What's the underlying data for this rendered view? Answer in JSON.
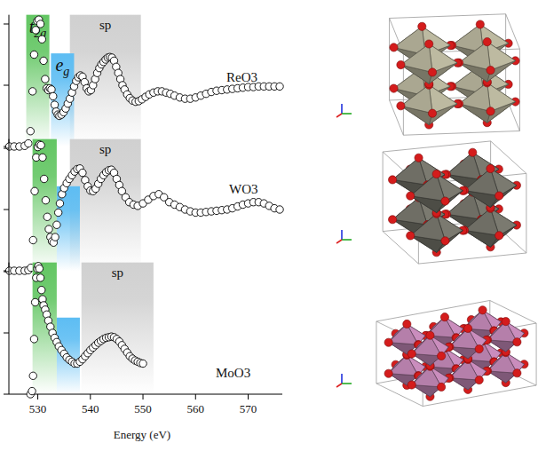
{
  "chart_data": [
    {
      "type": "scatter",
      "xlim": [
        524.5,
        576.5
      ],
      "ylim": [
        0,
        2.15
      ],
      "yticks": [
        0,
        1,
        2
      ],
      "tick_labels": false,
      "regions": [
        {
          "label": "t2g",
          "x": [
            527.8,
            532.2
          ],
          "y": [
            0,
            2.15
          ],
          "color": "#63c663"
        },
        {
          "label": "eg",
          "x": [
            532.5,
            536.9
          ],
          "y": [
            0,
            1.52
          ],
          "color": "#5dbdf3"
        },
        {
          "label": "sp",
          "x": [
            536.1,
            549.6
          ],
          "y": [
            0,
            2.15
          ],
          "color": "#d0d0d0"
        }
      ],
      "series": [
        {
          "name": "ReO3",
          "color": "#000000",
          "marker": "open-circle",
          "x": [
            524.6,
            525.5,
            526.5,
            527.5,
            528.2,
            528.6,
            529.0,
            529.3,
            529.6,
            529.9,
            530.2,
            530.5,
            530.8,
            531.1,
            531.4,
            531.7,
            532.0,
            532.3,
            532.6,
            532.9,
            533.2,
            533.5,
            533.8,
            534.1,
            534.5,
            534.9,
            535.3,
            535.7,
            536.1,
            536.5,
            536.9,
            537.3,
            537.7,
            538.1,
            538.5,
            538.9,
            539.3,
            539.7,
            540.1,
            540.5,
            540.9,
            541.3,
            541.7,
            542.1,
            542.5,
            542.9,
            543.3,
            543.7,
            544.1,
            544.5,
            544.9,
            545.3,
            545.7,
            546.1,
            546.5,
            547.0,
            547.5,
            548.0,
            548.6,
            549.2,
            549.8,
            550.5,
            551.2,
            552.0,
            552.8,
            553.6,
            554.4,
            555.2,
            556.0,
            557.0,
            558.0,
            559.0,
            560.0,
            561.0,
            562.0,
            563.0,
            564.0,
            565.0,
            566.0,
            567.0,
            568.0,
            569.0,
            570.0,
            571.0,
            572.0,
            573.0,
            574.0,
            575.0,
            576.0
          ],
          "values": [
            0,
            0,
            0,
            0.01,
            0.05,
            0.25,
            0.9,
            1.5,
            1.9,
            2.05,
            2.07,
            2.0,
            1.75,
            1.4,
            1.1,
            0.95,
            0.92,
            0.95,
            0.93,
            0.82,
            0.68,
            0.57,
            0.52,
            0.5,
            0.52,
            0.56,
            0.62,
            0.7,
            0.78,
            0.88,
            0.98,
            1.07,
            1.13,
            1.16,
            1.14,
            1.05,
            0.95,
            0.9,
            0.92,
            1.0,
            1.1,
            1.2,
            1.28,
            1.34,
            1.38,
            1.42,
            1.45,
            1.46,
            1.45,
            1.4,
            1.3,
            1.2,
            1.1,
            1.0,
            0.93,
            0.85,
            0.79,
            0.75,
            0.73,
            0.74,
            0.77,
            0.81,
            0.85,
            0.88,
            0.9,
            0.9,
            0.88,
            0.86,
            0.83,
            0.8,
            0.78,
            0.78,
            0.8,
            0.83,
            0.86,
            0.89,
            0.91,
            0.92,
            0.93,
            0.94,
            0.95,
            0.96,
            0.97,
            0.97,
            0.98,
            0.98,
            0.98,
            0.98,
            0.98
          ]
        }
      ]
    },
    {
      "type": "scatter",
      "xlim": [
        524.5,
        576.5
      ],
      "ylim": [
        0,
        2.15
      ],
      "yticks": [
        0,
        1,
        2
      ],
      "tick_labels": false,
      "regions": [
        {
          "x": [
            529.0,
            533.6
          ],
          "y": [
            0,
            2.15
          ],
          "color": "#63c663"
        },
        {
          "x": [
            533.6,
            538.0
          ],
          "y": [
            0,
            1.38
          ],
          "color": "#5dbdf3"
        },
        {
          "label": "sp",
          "x": [
            536.1,
            549.6
          ],
          "y": [
            0,
            2.15
          ],
          "color": "#d0d0d0"
        }
      ],
      "series": [
        {
          "name": "WO3",
          "color": "#000000",
          "marker": "open-circle",
          "x": [
            524.6,
            525.5,
            526.5,
            527.5,
            528.2,
            528.7,
            529.1,
            529.4,
            529.7,
            530.0,
            530.3,
            530.6,
            530.9,
            531.2,
            531.5,
            531.8,
            532.1,
            532.4,
            532.7,
            533.0,
            533.3,
            533.6,
            533.9,
            534.2,
            534.6,
            535.0,
            535.5,
            536.0,
            536.5,
            537.0,
            537.5,
            538.0,
            538.5,
            539.0,
            539.5,
            540.0,
            540.5,
            541.0,
            541.5,
            542.0,
            542.5,
            543.0,
            543.5,
            544.0,
            544.5,
            545.0,
            545.5,
            546.0,
            546.7,
            547.4,
            548.2,
            549.0,
            550.0,
            551.0,
            552.0,
            553.0,
            554.0,
            555.0,
            556.0,
            557.0,
            558.0,
            559.0,
            560.0,
            561.0,
            562.0,
            563.0,
            564.0,
            565.0,
            566.0,
            567.0,
            568.0,
            569.0,
            570.0,
            571.0,
            572.0,
            573.0,
            574.0,
            575.0,
            576.0
          ],
          "values": [
            0,
            0,
            0,
            0,
            0.01,
            0.05,
            0.5,
            1.3,
            1.85,
            2.02,
            2.06,
            2.05,
            1.85,
            1.5,
            1.15,
            0.88,
            0.68,
            0.55,
            0.48,
            0.46,
            0.55,
            0.75,
            0.95,
            1.1,
            1.25,
            1.35,
            1.43,
            1.5,
            1.56,
            1.62,
            1.66,
            1.67,
            1.6,
            1.48,
            1.38,
            1.31,
            1.3,
            1.34,
            1.42,
            1.5,
            1.56,
            1.61,
            1.64,
            1.65,
            1.6,
            1.5,
            1.4,
            1.3,
            1.2,
            1.12,
            1.08,
            1.06,
            1.1,
            1.16,
            1.22,
            1.25,
            1.2,
            1.12,
            1.08,
            1.04,
            1.0,
            0.97,
            0.95,
            0.95,
            0.96,
            0.97,
            0.98,
            0.99,
            1.0,
            1.02,
            1.05,
            1.08,
            1.1,
            1.12,
            1.12,
            1.1,
            1.06,
            1.02,
            1.0
          ]
        }
      ]
    },
    {
      "type": "scatter",
      "xlabel": "Energy (eV)",
      "xlim": [
        524.5,
        576.5
      ],
      "xticks": [
        530,
        540,
        550,
        560,
        570
      ],
      "ylim": [
        0,
        2.15
      ],
      "yticks": [
        0,
        1,
        2
      ],
      "tick_labels": "x",
      "regions": [
        {
          "x": [
            529.0,
            533.6
          ],
          "y": [
            0,
            2.15
          ],
          "color": "#63c663"
        },
        {
          "x": [
            533.6,
            538.0
          ],
          "y": [
            0,
            1.25
          ],
          "color": "#5dbdf3"
        },
        {
          "label": "sp",
          "x": [
            538.3,
            552.0
          ],
          "y": [
            0,
            2.15
          ],
          "color": "#d0d0d0"
        }
      ],
      "series": [
        {
          "name": "MoO3",
          "color": "#000000",
          "marker": "open-circle",
          "x": [
            528.6,
            528.9,
            529.1,
            529.3,
            529.5,
            529.7,
            529.9,
            530.1,
            530.3,
            530.5,
            530.7,
            530.9,
            531.1,
            531.4,
            531.7,
            532.0,
            532.4,
            532.8,
            533.2,
            533.6,
            534.0,
            534.5,
            535.0,
            535.5,
            536.0,
            536.5,
            537.0,
            537.5,
            538.0,
            538.5,
            539.0,
            539.5,
            540.0,
            540.5,
            541.0,
            541.5,
            542.0,
            542.5,
            543.0,
            543.5,
            544.0,
            544.5,
            545.0,
            545.5,
            546.0,
            546.5,
            547.0,
            547.5,
            548.0,
            548.5,
            549.0,
            549.5,
            550.0
          ],
          "values": [
            0,
            0.05,
            0.3,
            0.9,
            1.5,
            1.9,
            2.05,
            2.09,
            2.05,
            1.9,
            1.7,
            1.55,
            1.45,
            1.38,
            1.3,
            1.2,
            1.1,
            1.0,
            0.92,
            0.85,
            0.78,
            0.72,
            0.66,
            0.6,
            0.56,
            0.53,
            0.5,
            0.5,
            0.53,
            0.57,
            0.62,
            0.67,
            0.72,
            0.76,
            0.8,
            0.84,
            0.87,
            0.9,
            0.92,
            0.93,
            0.94,
            0.93,
            0.9,
            0.86,
            0.8,
            0.74,
            0.68,
            0.62,
            0.58,
            0.55,
            0.53,
            0.51,
            0.5
          ]
        }
      ]
    }
  ]
}
